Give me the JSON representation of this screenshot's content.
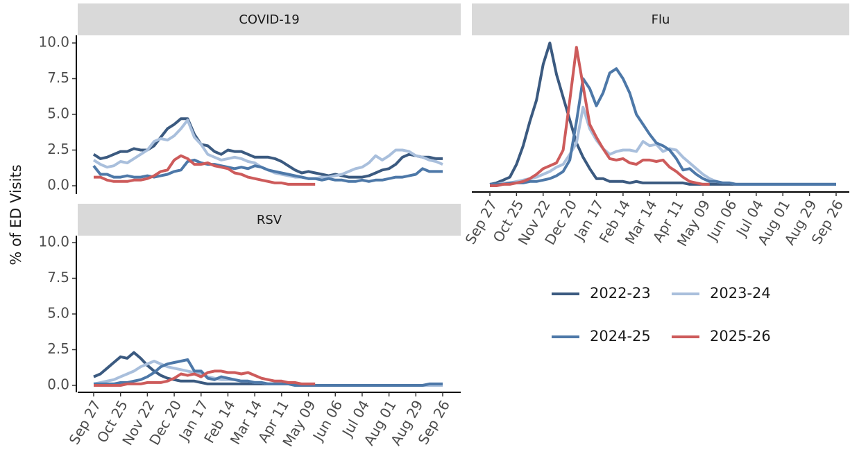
{
  "ylabel": "% of ED Visits",
  "chart_data": [
    {
      "type": "line",
      "title": "COVID-19",
      "categories": [
        "Sep 27",
        null,
        null,
        null,
        "Oct 25",
        null,
        null,
        null,
        "Nov 22",
        null,
        null,
        null,
        "Dec 20",
        null,
        null,
        null,
        "Jan 17",
        null,
        null,
        null,
        "Feb 14",
        null,
        null,
        null,
        "Mar 14",
        null,
        null,
        null,
        "Apr 11",
        null,
        null,
        null,
        "May 09",
        null,
        null,
        null,
        "Jun 06",
        null,
        null,
        null,
        "Jul 04",
        null,
        null,
        null,
        "Aug 01",
        null,
        null,
        null,
        "Aug 29",
        null,
        null,
        null,
        "Sep 26"
      ],
      "ylim": [
        0,
        10
      ],
      "yticks": [
        {
          "value": 0,
          "label": "0.0"
        },
        2.5,
        {
          "value": 5,
          "label": "5.0"
        },
        7.5,
        {
          "value": 10,
          "label": "10.0"
        }
      ],
      "series": [
        {
          "name": "2022-23",
          "color": "#3b5a80",
          "values": [
            2.2,
            1.9,
            2.0,
            2.2,
            2.4,
            2.4,
            2.6,
            2.5,
            2.5,
            2.8,
            3.4,
            4.0,
            4.3,
            4.7,
            4.7,
            3.6,
            2.9,
            2.8,
            2.4,
            2.2,
            2.5,
            2.4,
            2.4,
            2.2,
            2.0,
            2.0,
            2.0,
            1.9,
            1.7,
            1.4,
            1.1,
            0.9,
            1.0,
            0.9,
            0.8,
            0.7,
            0.8,
            0.7,
            0.6,
            0.6,
            0.6,
            0.7,
            0.9,
            1.1,
            1.2,
            1.5,
            2.0,
            2.2,
            2.1,
            2.0,
            2.0,
            1.9,
            1.9
          ]
        },
        {
          "name": "2023-24",
          "color": "#a9bfdc",
          "values": [
            1.8,
            1.5,
            1.3,
            1.4,
            1.7,
            1.6,
            1.9,
            2.2,
            2.5,
            3.1,
            3.3,
            3.2,
            3.5,
            4.0,
            4.6,
            3.4,
            2.9,
            2.2,
            2.0,
            1.8,
            1.9,
            2.0,
            1.9,
            1.7,
            1.6,
            1.3,
            1.1,
            0.9,
            0.8,
            0.7,
            0.6,
            0.6,
            0.5,
            0.5,
            0.6,
            0.6,
            0.7,
            0.8,
            1.0,
            1.2,
            1.3,
            1.6,
            2.1,
            1.8,
            2.1,
            2.5,
            2.5,
            2.4,
            2.1,
            2.0,
            1.8,
            1.7,
            1.5
          ]
        },
        {
          "name": "2024-25",
          "color": "#4d78a8",
          "values": [
            1.4,
            0.8,
            0.8,
            0.6,
            0.6,
            0.7,
            0.6,
            0.6,
            0.7,
            0.6,
            0.7,
            0.8,
            1.0,
            1.1,
            1.7,
            1.8,
            1.6,
            1.5,
            1.5,
            1.4,
            1.3,
            1.2,
            1.3,
            1.2,
            1.4,
            1.3,
            1.1,
            1.0,
            0.9,
            0.8,
            0.7,
            0.6,
            0.5,
            0.5,
            0.4,
            0.5,
            0.4,
            0.4,
            0.3,
            0.3,
            0.4,
            0.3,
            0.4,
            0.4,
            0.5,
            0.6,
            0.6,
            0.7,
            0.8,
            1.2,
            1.0,
            1.0,
            1.0
          ]
        },
        {
          "name": "2025-26",
          "color": "#cd5b5b",
          "values": [
            0.6,
            0.6,
            0.4,
            0.3,
            0.3,
            0.3,
            0.4,
            0.4,
            0.5,
            0.7,
            1.0,
            1.1,
            1.8,
            2.1,
            1.9,
            1.5,
            1.5,
            1.6,
            1.4,
            1.3,
            1.2,
            0.9,
            0.8,
            0.6,
            0.5,
            0.4,
            0.3,
            0.2,
            0.2,
            0.1,
            0.1,
            0.1,
            0.1,
            0.1,
            null,
            null,
            null,
            null,
            null,
            null,
            null,
            null,
            null,
            null,
            null,
            null,
            null,
            null,
            null,
            null,
            null,
            null,
            null
          ]
        }
      ]
    },
    {
      "type": "line",
      "title": "Flu",
      "categories": [
        "Sep 27",
        null,
        null,
        null,
        "Oct 25",
        null,
        null,
        null,
        "Nov 22",
        null,
        null,
        null,
        "Dec 20",
        null,
        null,
        null,
        "Jan 17",
        null,
        null,
        null,
        "Feb 14",
        null,
        null,
        null,
        "Mar 14",
        null,
        null,
        null,
        "Apr 11",
        null,
        null,
        null,
        "May 09",
        null,
        null,
        null,
        "Jun 06",
        null,
        null,
        null,
        "Jul 04",
        null,
        null,
        null,
        "Aug 01",
        null,
        null,
        null,
        "Aug 29",
        null,
        null,
        null,
        "Sep 26"
      ],
      "ylim": [
        0,
        10
      ],
      "series": [
        {
          "name": "2022-23",
          "color": "#3b5a80",
          "values": [
            0.1,
            0.2,
            0.4,
            0.6,
            1.5,
            2.8,
            4.5,
            6.0,
            8.5,
            10.0,
            7.8,
            6.2,
            4.6,
            3.0,
            2.0,
            1.2,
            0.5,
            0.5,
            0.3,
            0.3,
            0.3,
            0.2,
            0.3,
            0.2,
            0.2,
            0.2,
            0.2,
            0.2,
            0.2,
            0.2,
            0.1,
            0.1,
            0.1,
            0.1,
            0.1,
            0.1,
            0.1,
            0.1,
            0.1,
            0.1,
            0.1,
            0.1,
            0.1,
            0.1,
            0.1,
            0.1,
            0.1,
            0.1,
            0.1,
            0.1,
            0.1,
            0.1,
            0.1
          ]
        },
        {
          "name": "2023-24",
          "color": "#a9bfdc",
          "values": [
            0.1,
            0.1,
            0.2,
            0.2,
            0.3,
            0.4,
            0.5,
            0.6,
            0.8,
            1.0,
            1.3,
            1.5,
            2.2,
            3.0,
            5.5,
            4.0,
            3.2,
            2.6,
            2.2,
            2.4,
            2.5,
            2.5,
            2.4,
            3.1,
            2.8,
            2.9,
            2.4,
            2.6,
            2.5,
            2.0,
            1.6,
            1.2,
            0.8,
            0.5,
            0.3,
            0.2,
            0.2,
            0.1,
            0.1,
            0.1,
            0.1,
            0.1,
            0.1,
            0.1,
            0.1,
            0.1,
            0.1,
            0.1,
            0.1,
            0.1,
            0.1,
            0.1,
            0.1
          ]
        },
        {
          "name": "2024-25",
          "color": "#4d78a8",
          "values": [
            0.1,
            0.1,
            0.1,
            0.2,
            0.2,
            0.2,
            0.3,
            0.3,
            0.4,
            0.5,
            0.7,
            1.0,
            1.8,
            4.5,
            7.5,
            6.8,
            5.6,
            6.5,
            7.9,
            8.2,
            7.5,
            6.5,
            5.0,
            4.3,
            3.6,
            3.0,
            2.8,
            2.5,
            1.9,
            1.1,
            1.2,
            0.8,
            0.5,
            0.3,
            0.3,
            0.2,
            0.2,
            0.1,
            0.1,
            0.1,
            0.1,
            0.1,
            0.1,
            0.1,
            0.1,
            0.1,
            0.1,
            0.1,
            0.1,
            0.1,
            0.1,
            0.1,
            0.1
          ]
        },
        {
          "name": "2025-26",
          "color": "#cd5b5b",
          "values": [
            0.0,
            0.0,
            0.1,
            0.1,
            0.2,
            0.3,
            0.5,
            0.8,
            1.2,
            1.4,
            1.6,
            2.5,
            6.0,
            9.7,
            7.0,
            4.3,
            3.4,
            2.6,
            1.9,
            1.8,
            1.9,
            1.6,
            1.5,
            1.8,
            1.8,
            1.7,
            1.8,
            1.3,
            1.0,
            0.6,
            0.3,
            0.2,
            0.1,
            0.1,
            null,
            null,
            null,
            null,
            null,
            null,
            null,
            null,
            null,
            null,
            null,
            null,
            null,
            null,
            null,
            null,
            null,
            null,
            null
          ]
        }
      ]
    },
    {
      "type": "line",
      "title": "RSV",
      "categories": [
        "Sep 27",
        null,
        null,
        null,
        "Oct 25",
        null,
        null,
        null,
        "Nov 22",
        null,
        null,
        null,
        "Dec 20",
        null,
        null,
        null,
        "Jan 17",
        null,
        null,
        null,
        "Feb 14",
        null,
        null,
        null,
        "Mar 14",
        null,
        null,
        null,
        "Apr 11",
        null,
        null,
        null,
        "May 09",
        null,
        null,
        null,
        "Jun 06",
        null,
        null,
        null,
        "Jul 04",
        null,
        null,
        null,
        "Aug 01",
        null,
        null,
        null,
        "Aug 29",
        null,
        null,
        null,
        "Sep 26"
      ],
      "ylim": [
        0,
        10
      ],
      "yticks": [
        {
          "value": 0,
          "label": "0.0"
        },
        2.5,
        {
          "value": 5,
          "label": "5.0"
        },
        7.5,
        {
          "value": 10,
          "label": "10.0"
        }
      ],
      "series": [
        {
          "name": "2022-23",
          "color": "#3b5a80",
          "values": [
            0.6,
            0.8,
            1.2,
            1.6,
            2.0,
            1.9,
            2.3,
            1.9,
            1.4,
            1.0,
            0.7,
            0.5,
            0.4,
            0.3,
            0.3,
            0.3,
            0.2,
            0.1,
            0.1,
            0.1,
            0.1,
            0.1,
            0.1,
            0.1,
            0.1,
            0.1,
            0.1,
            0.1,
            0.1,
            0.1,
            0.1,
            0.0,
            0.0,
            0.0,
            0.0,
            0.0,
            0.0,
            0.0,
            0.0,
            0.0,
            0.0,
            0.0,
            0.0,
            0.0,
            0.0,
            0.0,
            0.0,
            0.0,
            0.0,
            0.0,
            0.0,
            0.0,
            0.0
          ]
        },
        {
          "name": "2023-24",
          "color": "#a9bfdc",
          "values": [
            0.1,
            0.2,
            0.3,
            0.4,
            0.6,
            0.8,
            1.0,
            1.3,
            1.5,
            1.7,
            1.5,
            1.3,
            1.2,
            1.1,
            1.0,
            0.9,
            0.8,
            0.6,
            0.5,
            0.4,
            0.4,
            0.4,
            0.3,
            0.3,
            0.2,
            0.2,
            0.1,
            0.1,
            0.1,
            0.1,
            0.0,
            0.0,
            0.0,
            0.0,
            0.0,
            0.0,
            0.0,
            0.0,
            0.0,
            0.0,
            0.0,
            0.0,
            0.0,
            0.0,
            0.0,
            0.0,
            0.0,
            0.0,
            0.0,
            0.0,
            0.0,
            0.0,
            0.0
          ]
        },
        {
          "name": "2024-25",
          "color": "#4d78a8",
          "values": [
            0.1,
            0.1,
            0.1,
            0.1,
            0.2,
            0.2,
            0.3,
            0.4,
            0.6,
            0.9,
            1.3,
            1.5,
            1.6,
            1.7,
            1.8,
            1.0,
            1.0,
            0.5,
            0.4,
            0.6,
            0.5,
            0.4,
            0.3,
            0.3,
            0.2,
            0.2,
            0.1,
            0.1,
            0.1,
            0.1,
            0.0,
            0.0,
            0.0,
            0.0,
            0.0,
            0.0,
            0.0,
            0.0,
            0.0,
            0.0,
            0.0,
            0.0,
            0.0,
            0.0,
            0.0,
            0.0,
            0.0,
            0.0,
            0.0,
            0.0,
            0.1,
            0.1,
            0.1
          ]
        },
        {
          "name": "2025-26",
          "color": "#cd5b5b",
          "values": [
            0.0,
            0.0,
            0.0,
            0.0,
            0.0,
            0.1,
            0.1,
            0.1,
            0.2,
            0.2,
            0.2,
            0.3,
            0.5,
            0.8,
            0.7,
            0.8,
            0.6,
            0.9,
            1.0,
            1.0,
            0.9,
            0.9,
            0.8,
            0.9,
            0.7,
            0.5,
            0.4,
            0.3,
            0.3,
            0.2,
            0.2,
            0.1,
            0.1,
            0.1,
            null,
            null,
            null,
            null,
            null,
            null,
            null,
            null,
            null,
            null,
            null,
            null,
            null,
            null,
            null,
            null,
            null,
            null,
            null
          ]
        }
      ]
    }
  ]
}
